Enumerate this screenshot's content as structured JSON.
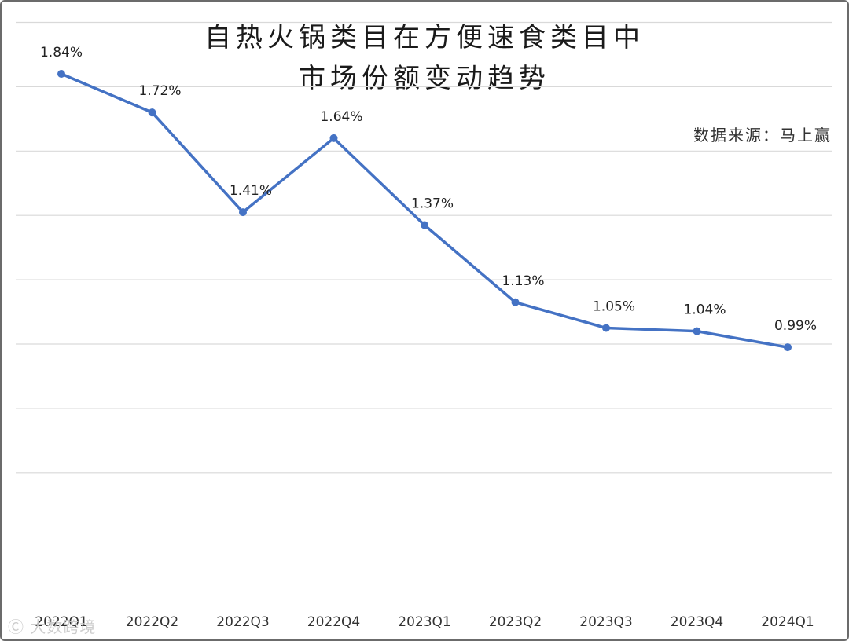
{
  "chart_data": {
    "type": "line",
    "title_lines": [
      "自热火锅类目在方便速食类目中",
      "市场份额变动趋势"
    ],
    "source": "数据来源：马上赢",
    "categories": [
      "2022Q1",
      "2022Q2",
      "2022Q3",
      "2022Q4",
      "2023Q1",
      "2023Q2",
      "2023Q3",
      "2023Q4",
      "2024Q1"
    ],
    "series": [
      {
        "values": [
          1.84,
          1.72,
          1.41,
          1.64,
          1.37,
          1.13,
          1.05,
          1.04,
          0.99
        ],
        "labels": [
          "1.84%",
          "1.72%",
          "1.41%",
          "1.64%",
          "1.37%",
          "1.13%",
          "1.05%",
          "1.04%",
          "0.99%"
        ],
        "color": "#4472c4"
      }
    ],
    "ylim": [
      0.4,
      2.0
    ],
    "y_gridlines": [
      0.6,
      0.8,
      1.0,
      1.2,
      1.4,
      1.6,
      1.8,
      2.0
    ],
    "y_tick_labels_shown": false,
    "legend": "none",
    "grid": true
  },
  "watermark": "大数跨境"
}
